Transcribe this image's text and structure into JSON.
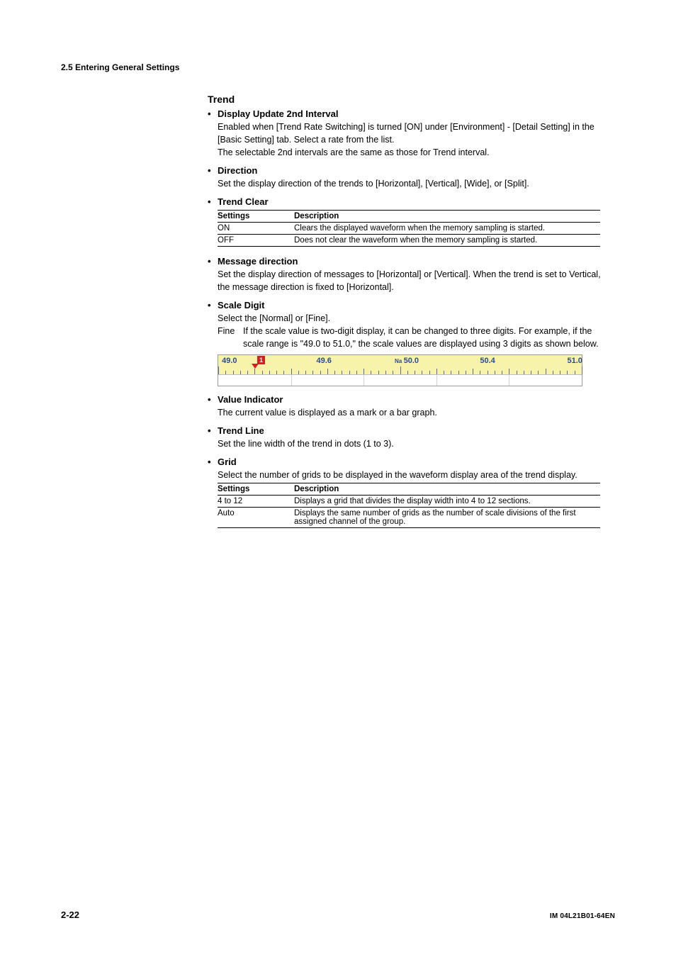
{
  "header": {
    "section": "2.5  Entering General Settings"
  },
  "trend": {
    "title": "Trend",
    "items": [
      {
        "title": "Display Update 2nd Interval",
        "body": [
          "Enabled when [Trend Rate Switching] is turned [ON] under [Environment] - [Detail Setting] in the [Basic Setting] tab. Select a rate from the list.",
          "The selectable 2nd intervals are the same as those for Trend interval."
        ]
      },
      {
        "title": "Direction",
        "body": [
          "Set the display direction of the trends to [Horizontal], [Vertical], [Wide], or [Split]."
        ]
      },
      {
        "title": "Trend Clear",
        "table": {
          "head": [
            "Settings",
            "Description"
          ],
          "rows": [
            [
              "ON",
              "Clears the displayed waveform when the memory sampling is started."
            ],
            [
              "OFF",
              "Does not clear the waveform when the memory sampling is started."
            ]
          ]
        }
      },
      {
        "title": "Message direction",
        "body": [
          "Set the display direction of messages to [Horizontal] or [Vertical].  When the trend is set to Vertical, the message direction is fixed to [Horizontal]."
        ]
      },
      {
        "title": "Scale Digit",
        "body": [
          "Select the [Normal] or [Fine]."
        ],
        "fine": {
          "label": "Fine",
          "text": "If the scale value is two-digit display, it can be changed to three digits.  For example, if the scale range is \"49.0 to 51.0,\" the scale values are displayed using 3 digits as shown below."
        },
        "scale": {
          "labels": [
            "49.0",
            "49.6",
            "50.0",
            "50.4",
            "51.0"
          ],
          "positions_pct": [
            1,
            27,
            51,
            72,
            96
          ],
          "na_prefix": "Na",
          "indicator": "1",
          "colors": {
            "bg_top": "#f7f3ab",
            "bg_bot": "#ffffff",
            "num": "#2b4b8f",
            "tick": "#5a6a9e",
            "arrow": "#d42020",
            "grid": "#cfcfcf",
            "border": "#9a9a9a"
          }
        }
      },
      {
        "title": "Value Indicator",
        "body": [
          "The current value is displayed as a mark or a bar graph."
        ]
      },
      {
        "title": "Trend Line",
        "body": [
          "Set the line width of the trend in dots (1 to 3)."
        ]
      },
      {
        "title": "Grid",
        "body": [
          "Select the number of grids to be displayed in the waveform display area of the trend display."
        ],
        "table": {
          "head": [
            "Settings",
            "Description"
          ],
          "rows": [
            [
              "4 to 12",
              "Displays a grid that divides the display width into 4 to 12 sections."
            ],
            [
              "Auto",
              "Displays the same number of grids as the number of scale divisions of the first assigned channel of the group."
            ]
          ]
        }
      }
    ]
  },
  "footer": {
    "page": "2-22",
    "doc": "IM 04L21B01-64EN"
  }
}
